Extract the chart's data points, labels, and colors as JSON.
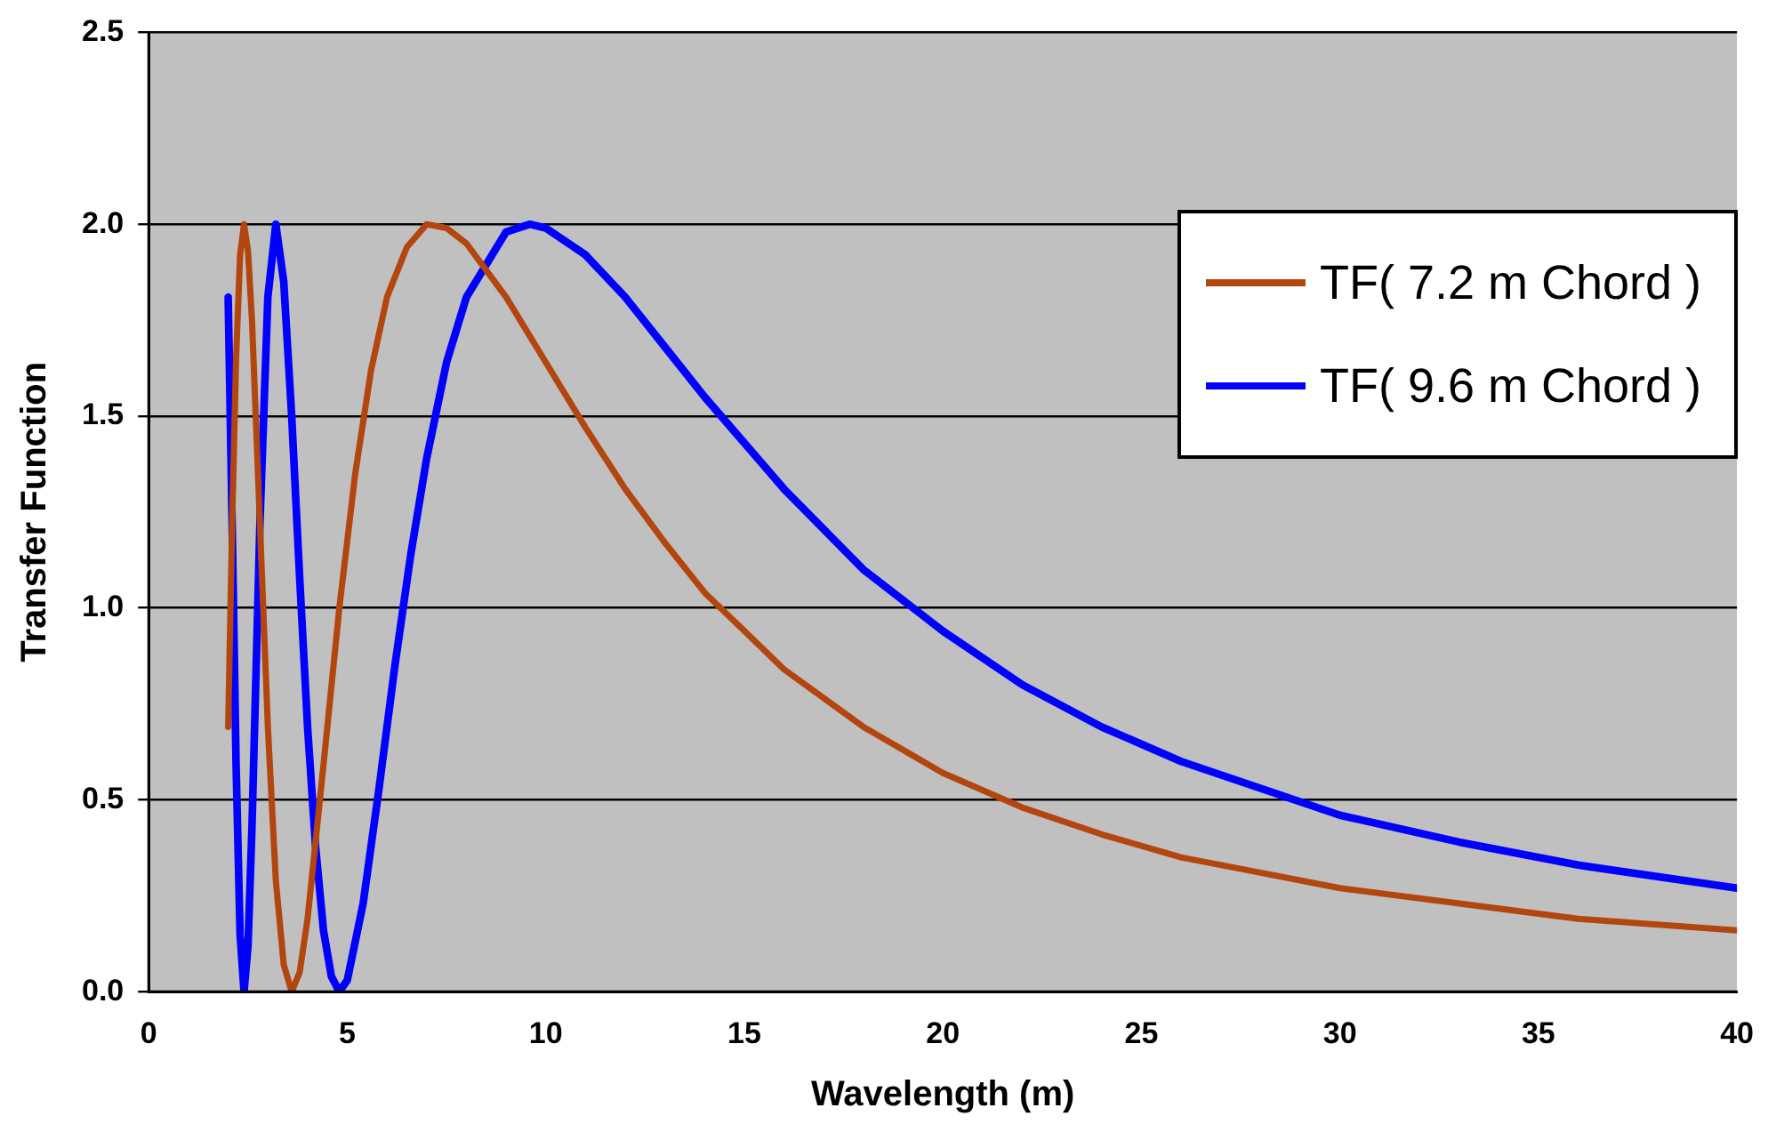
{
  "chart_data": {
    "type": "line",
    "xlabel": "Wavelength (m)",
    "ylabel": "Transfer Function",
    "xlim": [
      0,
      40
    ],
    "xticks": [
      0,
      5,
      10,
      15,
      20,
      25,
      30,
      35,
      40
    ],
    "ylim": [
      0,
      2.5
    ],
    "yticks": [
      {
        "value": 0,
        "label": "0.0"
      },
      {
        "value": 0.5,
        "label": "0.5"
      },
      {
        "value": 1,
        "label": "1.0"
      },
      {
        "value": 1.5,
        "label": "1.5"
      },
      {
        "value": 2,
        "label": "2.0"
      },
      {
        "value": 2.5,
        "label": "2.5"
      }
    ],
    "grid": "y",
    "legend": "top right",
    "marker": "none",
    "line_style": "solid",
    "series": [
      {
        "name": "TF( 7.2 m Chord )",
        "color": "#b3450f",
        "x": [
          2,
          2.1,
          2.2,
          2.3,
          2.4,
          2.5,
          2.6,
          2.8,
          3,
          3.2,
          3.4,
          3.6,
          3.8,
          4,
          4.4,
          4.8,
          5.2,
          5.6,
          6,
          6.5,
          7,
          7.5,
          8,
          9,
          10,
          11,
          12,
          13,
          14,
          15,
          16,
          18,
          20,
          22,
          24,
          26,
          28,
          30,
          33,
          36,
          40
        ],
        "values": [
          0.69,
          1.22,
          1.65,
          1.92,
          2,
          1.93,
          1.75,
          1.22,
          0.69,
          0.29,
          0.07,
          0,
          0.05,
          0.19,
          0.59,
          1,
          1.35,
          1.62,
          1.81,
          1.94,
          2,
          1.99,
          1.95,
          1.81,
          1.64,
          1.47,
          1.31,
          1.17,
          1.04,
          0.94,
          0.84,
          0.69,
          0.57,
          0.48,
          0.41,
          0.35,
          0.31,
          0.27,
          0.23,
          0.19,
          0.16
        ]
      },
      {
        "name": "TF( 9.6 m Chord )",
        "color": "#0000ff",
        "x": [
          2,
          2.1,
          2.2,
          2.3,
          2.4,
          2.5,
          2.6,
          2.8,
          3,
          3.2,
          3.4,
          3.6,
          3.8,
          4,
          4.2,
          4.4,
          4.6,
          4.8,
          5,
          5.4,
          5.8,
          6.2,
          6.6,
          7,
          7.5,
          8,
          9,
          9.6,
          10,
          11,
          12,
          13,
          14,
          15,
          16,
          18,
          20,
          22,
          24,
          26,
          28,
          30,
          33,
          36,
          40
        ],
        "values": [
          1.81,
          1.22,
          0.59,
          0.15,
          0,
          0.12,
          0.43,
          1.22,
          1.81,
          2,
          1.85,
          1.5,
          1.08,
          0.69,
          0.38,
          0.16,
          0.04,
          0,
          0.03,
          0.23,
          0.53,
          0.85,
          1.14,
          1.39,
          1.64,
          1.81,
          1.98,
          2,
          1.99,
          1.92,
          1.81,
          1.68,
          1.55,
          1.43,
          1.31,
          1.1,
          0.94,
          0.8,
          0.69,
          0.6,
          0.53,
          0.46,
          0.39,
          0.33,
          0.27
        ]
      }
    ]
  }
}
